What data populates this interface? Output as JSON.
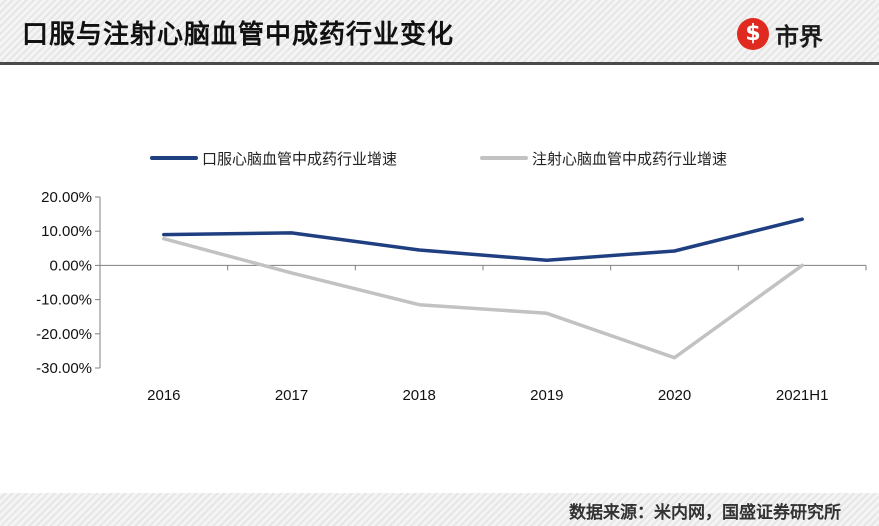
{
  "header": {
    "title": "口服与注射心脑血管中成药行业变化",
    "logo_text": "市界",
    "logo_glyph": "$",
    "logo_icon": "shijie-logo-icon"
  },
  "footer": {
    "source": "数据来源：米内网，国盛证券研究所"
  },
  "colors": {
    "oral": "#1f3f80",
    "injection": "#c2c2c2",
    "accent": "#e02a20"
  },
  "chart_data": {
    "type": "line",
    "title": "",
    "xlabel": "",
    "ylabel": "",
    "categories": [
      "2016",
      "2017",
      "2018",
      "2019",
      "2020",
      "2021H1"
    ],
    "ylim": [
      -30,
      20
    ],
    "yticks": [
      "20.00%",
      "10.00%",
      "0.00%",
      "-10.00%",
      "-20.00%",
      "-30.00%"
    ],
    "ytick_values": [
      20,
      10,
      0,
      -10,
      -20,
      -30
    ],
    "legend_position": "top",
    "grid": false,
    "series": [
      {
        "name": "口服心脑血管中成药行业增速",
        "values": [
          9.0,
          9.5,
          4.5,
          1.5,
          4.2,
          13.5
        ]
      },
      {
        "name": "注射心脑血管中成药行业增速",
        "values": [
          7.8,
          -2.2,
          -11.5,
          -14.0,
          -27.0,
          0.0
        ]
      }
    ]
  }
}
